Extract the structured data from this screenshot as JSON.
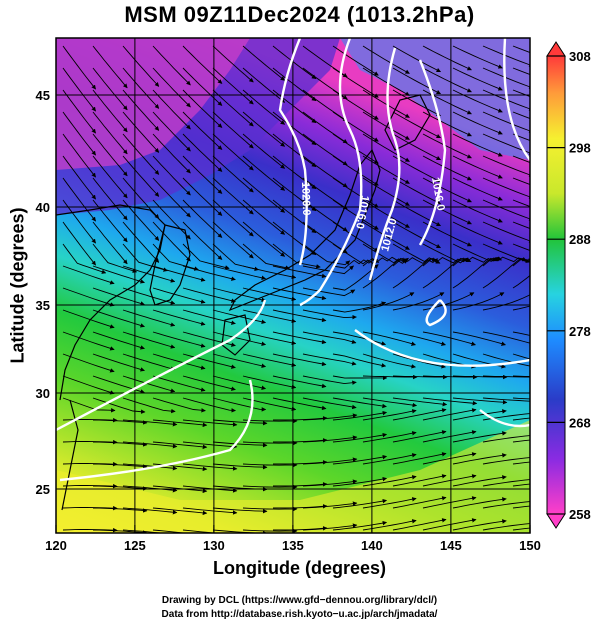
{
  "title": "MSM 09Z11Dec2024 (1013.2hPa)",
  "axes": {
    "xlabel": "Longitude (degrees)",
    "ylabel": "Latitude  (degrees)",
    "x_ticks": [
      "120",
      "125",
      "130",
      "135",
      "140",
      "145",
      "150"
    ],
    "y_ticks": [
      "25",
      "30",
      "35",
      "40",
      "45"
    ],
    "xlim": [
      120,
      150
    ],
    "ylim": [
      22.5,
      47.6
    ]
  },
  "colorbar": {
    "ticks": [
      "308",
      "298",
      "288",
      "278",
      "268",
      "258"
    ],
    "range": [
      258,
      308
    ],
    "colors": [
      "#ff3fc8",
      "#8a2be2",
      "#2a3cc8",
      "#1e8cff",
      "#27d3e0",
      "#22c43a",
      "#5cd62a",
      "#c9e82c",
      "#f6f030",
      "#ff9a3a",
      "#ff3a3a"
    ]
  },
  "contours": [
    {
      "label": "1020.0"
    },
    {
      "label": "1016.0"
    },
    {
      "label": "1012.0"
    },
    {
      "label": "1016.0"
    }
  ],
  "credits": {
    "line1": "Drawing by DCL (https://www.gfd−dennou.org/library/dcl/)",
    "line2": "Data from http://database.rish.kyoto−u.ac.jp/arch/jmadata/"
  }
}
